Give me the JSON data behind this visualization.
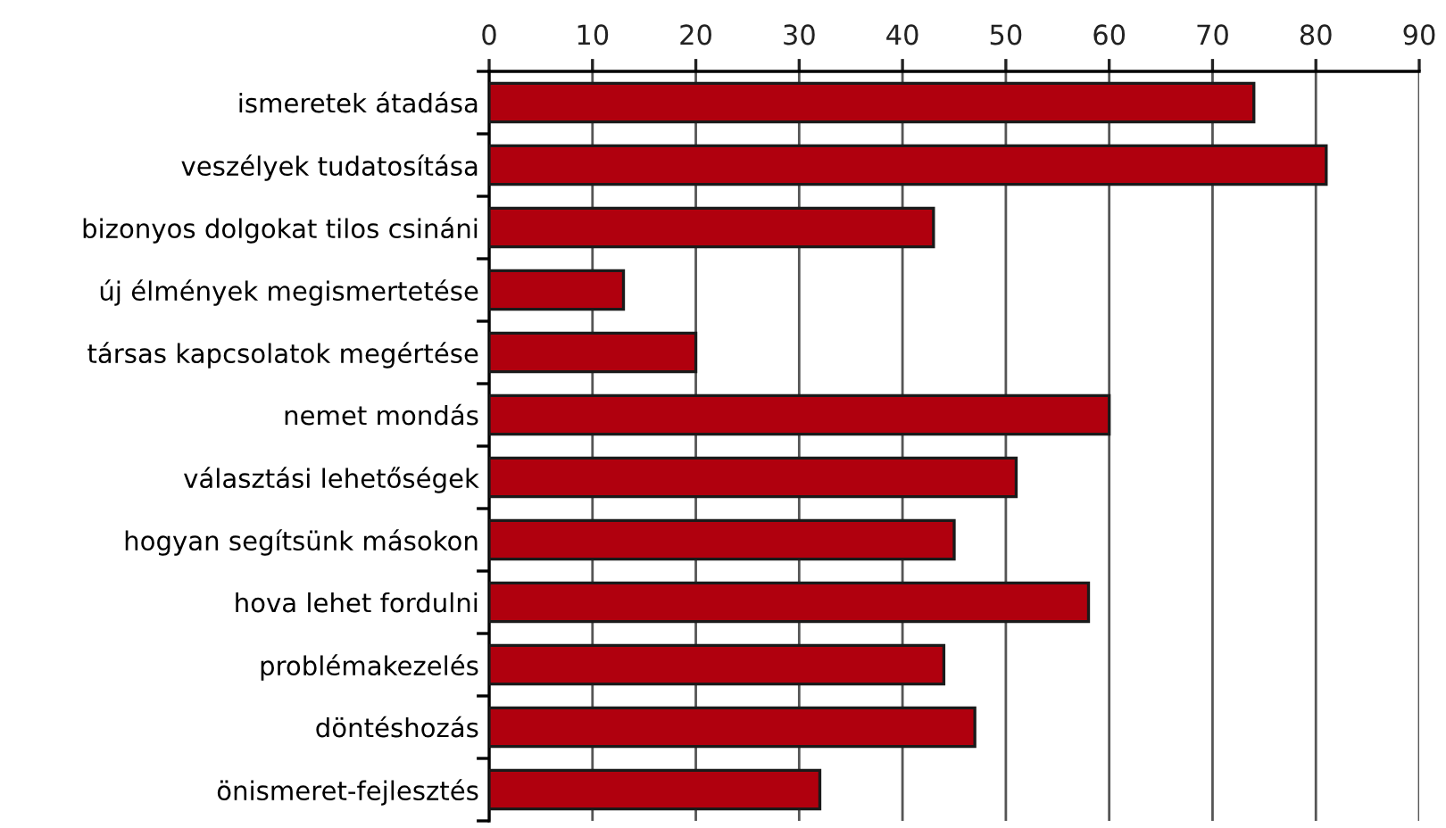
{
  "chart_data": {
    "type": "bar",
    "orientation": "horizontal",
    "categories": [
      "ismeretek átadása",
      "veszélyek tudatosítása",
      "bizonyos dolgokat tilos csináni",
      "új élmények megismertetése",
      "társas kapcsolatok megértése",
      "nemet mondás",
      "választási lehetőségek",
      "hogyan segítsünk másokon",
      "hova lehet fordulni",
      "problémakezelés",
      "döntéshozás",
      "önismeret-fejlesztés"
    ],
    "values": [
      74,
      81,
      43,
      13,
      20,
      60,
      51,
      45,
      58,
      44,
      47,
      32
    ],
    "color": "#b0000e",
    "xlim": [
      0,
      90
    ],
    "xticks": [
      0,
      10,
      20,
      30,
      40,
      50,
      60,
      70,
      80,
      90
    ],
    "grid": "x"
  }
}
